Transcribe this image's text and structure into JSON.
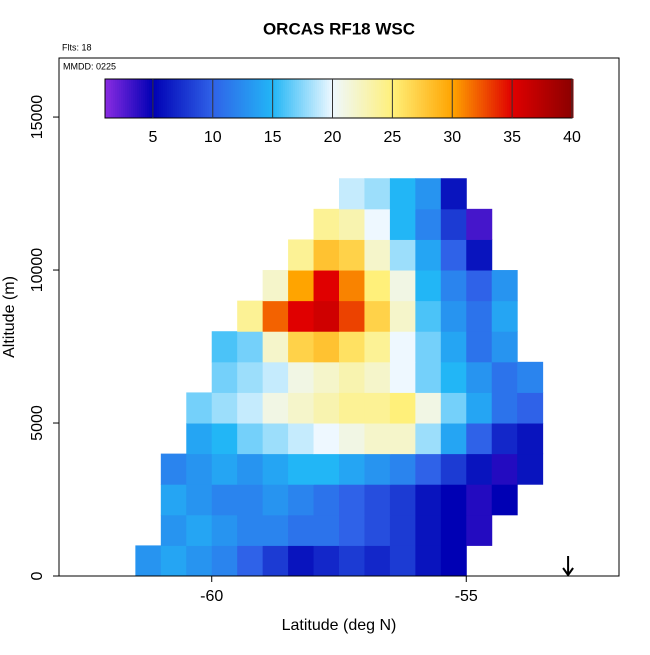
{
  "chart_data": {
    "type": "heatmap",
    "title": "ORCAS RF18 WSC",
    "annotations": [
      "Flts: 18",
      "MMDD: 0225"
    ],
    "x_label": "Latitude (deg N)",
    "y_label": "Altitude (m)",
    "xlim": [
      -63,
      -52
    ],
    "xticks": [
      -60,
      -55
    ],
    "ylim": [
      0,
      16930
    ],
    "yticks": [
      0,
      5000,
      10000,
      15000
    ],
    "x": [
      -61.25,
      -60.75,
      -60.25,
      -59.75,
      -59.25,
      -58.75,
      -58.25,
      -57.75,
      -57.25,
      -56.75,
      -56.25,
      -55.75,
      -55.25,
      -54.75,
      -54.25,
      -53.75
    ],
    "cell_width": 0.5,
    "cell_height": 1000,
    "y": [
      500,
      1500,
      2500,
      3500,
      4500,
      5500,
      6500,
      7500,
      8500,
      9500,
      10500,
      11500,
      12500
    ],
    "z": [
      [
        13,
        14,
        13,
        12,
        10,
        8,
        6,
        7,
        8,
        7,
        8,
        6,
        5,
        null,
        null,
        null
      ],
      [
        null,
        13,
        14,
        13,
        12,
        12,
        11,
        11,
        10,
        9,
        8,
        6,
        5,
        4,
        null,
        null
      ],
      [
        null,
        14,
        13,
        12,
        12,
        13,
        12,
        11,
        10,
        9,
        8,
        6,
        5,
        4,
        5,
        null
      ],
      [
        null,
        12,
        13,
        14,
        13,
        14,
        15,
        15,
        14,
        13,
        12,
        10,
        8,
        6,
        4,
        6
      ],
      [
        null,
        null,
        14,
        15,
        17,
        18,
        19,
        20,
        21,
        22,
        22,
        18,
        14,
        10,
        7,
        6
      ],
      [
        null,
        null,
        17,
        18,
        19,
        21,
        22,
        23,
        24,
        24,
        25,
        21,
        17,
        14,
        11,
        10
      ],
      [
        null,
        null,
        null,
        17,
        18,
        19,
        21,
        22,
        23,
        22,
        20,
        17,
        15,
        13,
        11,
        12
      ],
      [
        null,
        null,
        null,
        16,
        17,
        22,
        27,
        28,
        26,
        24,
        20,
        17,
        14,
        11,
        13,
        null
      ],
      [
        null,
        null,
        null,
        null,
        24,
        32,
        35,
        36,
        33,
        27,
        22,
        16,
        13,
        11,
        14,
        null
      ],
      [
        null,
        null,
        null,
        null,
        null,
        22,
        30,
        35,
        31,
        25,
        21,
        15,
        12,
        10,
        13,
        null
      ],
      [
        null,
        null,
        null,
        null,
        null,
        null,
        24,
        28,
        27,
        22,
        18,
        14,
        10,
        6,
        null,
        null
      ],
      [
        null,
        null,
        null,
        null,
        null,
        null,
        null,
        24,
        23,
        20,
        15,
        12,
        8,
        3,
        null,
        null
      ],
      [
        null,
        null,
        null,
        null,
        null,
        null,
        null,
        null,
        19,
        18,
        15,
        13,
        6,
        null,
        null,
        null
      ]
    ],
    "clim": [
      1,
      40
    ],
    "cticks": [
      5,
      10,
      15,
      20,
      25,
      30,
      35,
      40
    ],
    "colorscale": [
      [
        1,
        "#8a2be2"
      ],
      [
        5,
        "#0000b4"
      ],
      [
        10,
        "#2f62e8"
      ],
      [
        15,
        "#22b6f6"
      ],
      [
        20,
        "#eef8ff"
      ],
      [
        25,
        "#fff07a"
      ],
      [
        30,
        "#ffa400"
      ],
      [
        35,
        "#e00000"
      ],
      [
        40,
        "#8c0000"
      ]
    ],
    "arrow_x": -53
  }
}
